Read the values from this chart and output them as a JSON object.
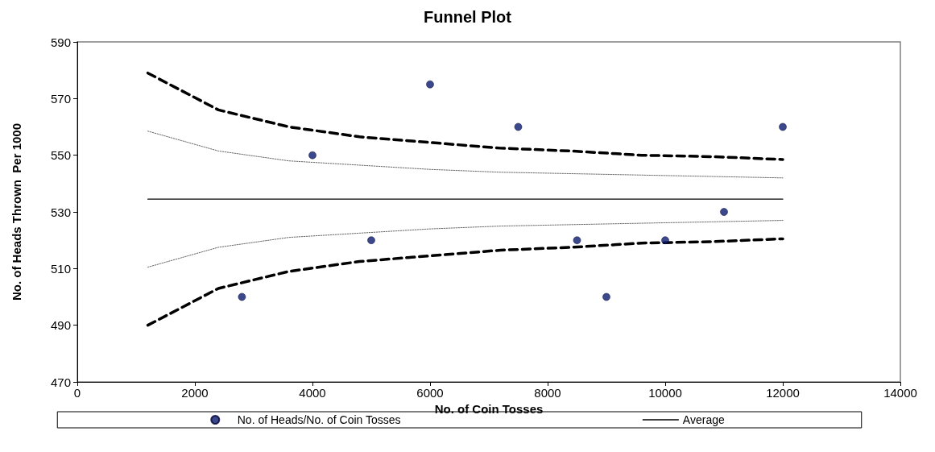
{
  "chart_data": {
    "type": "scatter",
    "title": "Funnel Plot",
    "xlabel": "No. of Coin Tosses",
    "ylabel": "No. of Heads Thrown  Per 1000",
    "xlim": [
      0,
      14000
    ],
    "xticks": [
      0,
      2000,
      4000,
      6000,
      8000,
      10000,
      12000,
      14000
    ],
    "ylim": [
      470,
      590
    ],
    "yticks": [
      470,
      490,
      510,
      530,
      550,
      570,
      590
    ],
    "grid": false,
    "legend": "bottom",
    "series": [
      {
        "name": "No. of Heads/No. of Coin Tosses",
        "type": "scatter",
        "color": "#0a1a6e",
        "marker": "circle",
        "x": [
          2800,
          4000,
          5000,
          6000,
          7500,
          8500,
          9000,
          10000,
          11000,
          12000
        ],
        "values": [
          500,
          550,
          520,
          575,
          560,
          520,
          500,
          520,
          530,
          560
        ]
      },
      {
        "name": "Average",
        "type": "line",
        "color": "#000000",
        "marker": "none",
        "line_style": "solid",
        "x": [
          1200,
          12000
        ],
        "values": [
          534.5,
          534.5
        ]
      },
      {
        "type": "line",
        "color": "#000000",
        "marker": "none",
        "line_style": "dashed",
        "x": [
          1200,
          2400,
          3600,
          4800,
          6000,
          7200,
          8400,
          9600,
          10800,
          12000
        ],
        "values": [
          579,
          566,
          560,
          556.5,
          554.5,
          552.5,
          551.5,
          550,
          549.5,
          548.5
        ]
      },
      {
        "type": "line",
        "color": "#000000",
        "marker": "none",
        "line_style": "dashed",
        "x": [
          1200,
          2400,
          3600,
          4800,
          6000,
          7200,
          8400,
          9600,
          10800,
          12000
        ],
        "values": [
          490,
          503,
          509,
          512.5,
          514.5,
          516.5,
          517.5,
          519,
          519.5,
          520.5
        ]
      },
      {
        "type": "line",
        "color": "#555555",
        "marker": "none",
        "line_style": "dotted",
        "x": [
          1200,
          2400,
          3600,
          4800,
          6000,
          7200,
          8400,
          9600,
          10800,
          12000
        ],
        "values": [
          558.5,
          551.5,
          548,
          546.5,
          545,
          544,
          543.5,
          543,
          542.5,
          542
        ]
      },
      {
        "type": "line",
        "color": "#555555",
        "marker": "none",
        "line_style": "dotted",
        "x": [
          1200,
          2400,
          3600,
          4800,
          6000,
          7200,
          8400,
          9600,
          10800,
          12000
        ],
        "values": [
          510.5,
          517.5,
          521,
          522.5,
          524,
          525,
          525.5,
          526,
          526.5,
          527
        ]
      }
    ]
  }
}
